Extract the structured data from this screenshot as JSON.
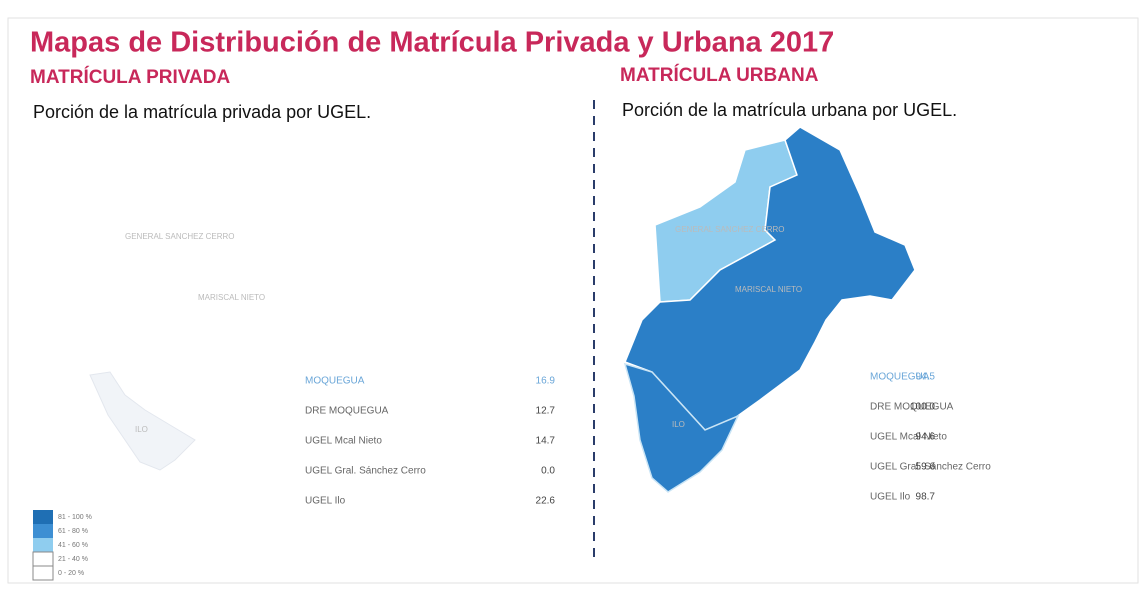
{
  "title": "Mapas de Distribución de Matrícula Privada y Urbana 2017",
  "panels": [
    {
      "heading": "MATRÍCULA PRIVADA",
      "caption": "Porción de la matrícula privada por UGEL.",
      "map_labels": [
        "GENERAL SANCHEZ CERRO",
        "MARISCAL NIETO",
        "ILO"
      ],
      "rows": [
        {
          "name": "MOQUEGUA",
          "value": "16.9"
        },
        {
          "name": "DRE MOQUEGUA",
          "value": "12.7"
        },
        {
          "name": "UGEL Mcal Nieto",
          "value": "14.7"
        },
        {
          "name": "UGEL Gral. Sánchez Cerro",
          "value": "0.0"
        },
        {
          "name": "UGEL Ilo",
          "value": "22.6"
        }
      ]
    },
    {
      "heading": "MATRÍCULA URBANA",
      "caption": "Porción de la matrícula urbana por UGEL.",
      "map_labels": [
        "GENERAL SANCHEZ CERRO",
        "MARISCAL NIETO",
        "ILO"
      ],
      "rows": [
        {
          "name": "MOQUEGUA",
          "value": "94.5"
        },
        {
          "name": "DRE MOQUEGUA",
          "value": "100.0"
        },
        {
          "name": "UGEL Mcal Nieto",
          "value": "94.6"
        },
        {
          "name": "UGEL Gral. Sánchez Cerro",
          "value": "59.6"
        },
        {
          "name": "UGEL Ilo",
          "value": "98.7"
        }
      ]
    }
  ],
  "legend": [
    "81 - 100 %",
    "61 - 80 %",
    "41 - 60 %",
    "21 - 40 %",
    "0 - 20 %"
  ]
}
